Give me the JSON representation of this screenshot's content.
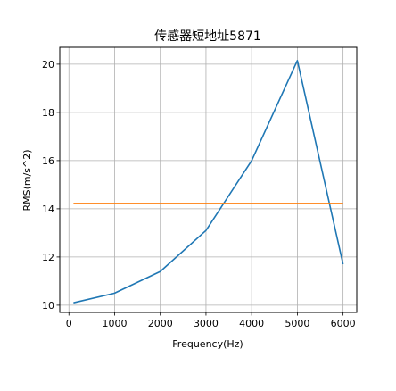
{
  "chart_data": {
    "type": "line",
    "title": "传感器短地址5871",
    "xlabel": "Frequency(Hz)",
    "ylabel": "RMS(m/s^2)",
    "xlim": [
      -200,
      6300
    ],
    "ylim": [
      9.7,
      20.7
    ],
    "xticks": [
      0,
      1000,
      2000,
      3000,
      4000,
      5000,
      6000
    ],
    "yticks": [
      10,
      12,
      14,
      16,
      18,
      20
    ],
    "grid": true,
    "series": [
      {
        "color": "#1f77b4",
        "x": [
          100,
          1000,
          2000,
          3000,
          4000,
          5000,
          6000
        ],
        "y": [
          10.1,
          10.5,
          11.4,
          13.1,
          16.0,
          20.15,
          11.7
        ]
      },
      {
        "color": "#ff7f0e",
        "x": [
          100,
          6000
        ],
        "y": [
          14.22,
          14.22
        ]
      }
    ]
  }
}
